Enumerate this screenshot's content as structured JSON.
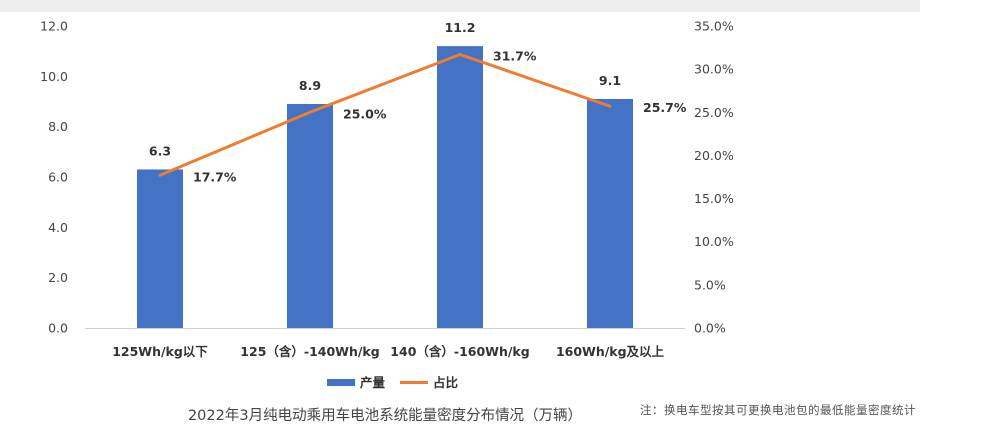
{
  "chart_data": {
    "type": "bar",
    "title": "2022年3月纯电动乘用车电池系统能量密度分布情况（万辆）",
    "note": "注：换电车型按其可更换电池包的最低能量密度统计",
    "categories": [
      "125Wh/kg以下",
      "125（含）-140Wh/kg",
      "140（含）-160Wh/kg",
      "160Wh/kg及以上"
    ],
    "series": [
      {
        "name": "产量",
        "type": "bar",
        "axis": "left",
        "color": "#4472C4",
        "values": [
          6.3,
          8.9,
          11.2,
          9.1
        ],
        "labels": [
          "6.3",
          "8.9",
          "11.2",
          "9.1"
        ]
      },
      {
        "name": "占比",
        "type": "line",
        "axis": "right",
        "color": "#ED7D31",
        "values": [
          17.7,
          25.0,
          31.7,
          25.7
        ],
        "labels": [
          "17.7%",
          "25.0%",
          "31.7%",
          "25.7%"
        ]
      }
    ],
    "y_left": {
      "min": 0,
      "max": 12,
      "step": 2,
      "tick_labels": [
        "0.0",
        "2.0",
        "4.0",
        "6.0",
        "8.0",
        "10.0",
        "12.0"
      ]
    },
    "y_right": {
      "min": 0,
      "max": 35,
      "step": 5,
      "tick_labels": [
        "0.0%",
        "5.0%",
        "10.0%",
        "15.0%",
        "20.0%",
        "25.0%",
        "30.0%",
        "35.0%"
      ]
    },
    "legend_position": "bottom",
    "grid": false
  }
}
